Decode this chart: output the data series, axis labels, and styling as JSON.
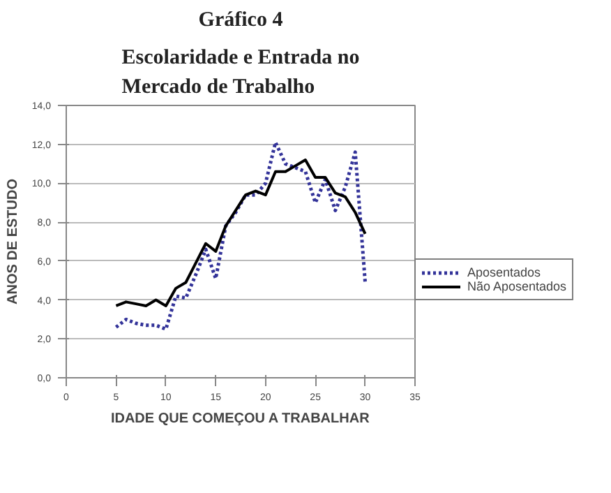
{
  "chart_data": {
    "type": "line",
    "title": "Gráfico 4",
    "subtitle": "Escolaridade e Entrada no Mercado de Trabalho",
    "xlabel": "IDADE QUE COMEÇOU A TRABALHAR",
    "ylabel": "ANOS DE ESTUDO",
    "x": [
      5,
      6,
      7,
      8,
      9,
      10,
      11,
      12,
      13,
      14,
      15,
      16,
      17,
      18,
      19,
      20,
      21,
      22,
      23,
      24,
      25,
      26,
      27,
      28,
      29,
      30
    ],
    "series": [
      {
        "name": "Aposentados",
        "color": "#333399",
        "line_style": "dotted",
        "values": [
          2.6,
          3.0,
          2.8,
          2.7,
          2.7,
          2.5,
          4.2,
          4.1,
          5.3,
          6.6,
          5.1,
          7.8,
          8.5,
          9.4,
          9.4,
          10.0,
          12.1,
          11.0,
          10.8,
          10.6,
          9.0,
          10.2,
          8.6,
          9.8,
          11.6,
          4.9
        ]
      },
      {
        "name": "Não Aposentados",
        "color": "#000000",
        "line_style": "solid",
        "values": [
          3.7,
          3.9,
          3.8,
          3.7,
          4.0,
          3.7,
          4.6,
          4.9,
          5.9,
          6.9,
          6.5,
          7.8,
          8.6,
          9.4,
          9.6,
          9.4,
          10.6,
          10.6,
          10.9,
          11.2,
          10.3,
          10.3,
          9.5,
          9.3,
          8.5,
          7.4
        ]
      }
    ],
    "xlim": [
      0,
      35
    ],
    "xticks": [
      0,
      5,
      10,
      15,
      20,
      25,
      30,
      35
    ],
    "ylim": [
      0,
      14
    ],
    "yticks": [
      {
        "value": 0,
        "label": "0,0"
      },
      {
        "value": 2,
        "label": "2,0"
      },
      {
        "value": 4,
        "label": "4,0"
      },
      {
        "value": 6,
        "label": "6,0"
      },
      {
        "value": 8,
        "label": "8,0"
      },
      {
        "value": 10,
        "label": "10,0"
      },
      {
        "value": 12,
        "label": "12,0"
      },
      {
        "value": 14,
        "label": "14,0"
      }
    ],
    "grid": "y",
    "legend": "right",
    "marker": "none"
  }
}
